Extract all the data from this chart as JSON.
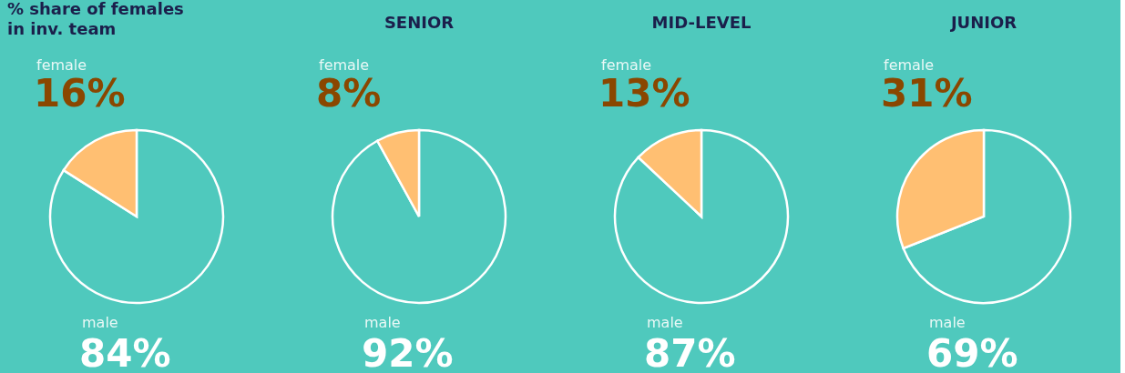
{
  "chart_data": [
    {
      "type": "pie",
      "title": "% share of females\nin inv. team",
      "categories": [
        "male",
        "female"
      ],
      "values": [
        84,
        16
      ],
      "colors": [
        "#4fc9bd",
        "#ffbf72"
      ],
      "value_labels": [
        "84%",
        "16%"
      ],
      "legend": false
    },
    {
      "type": "pie",
      "title": "SENIOR",
      "categories": [
        "male",
        "female"
      ],
      "values": [
        92,
        8
      ],
      "colors": [
        "#4fc9bd",
        "#ffbf72"
      ],
      "value_labels": [
        "92%",
        "8%"
      ],
      "legend": false
    },
    {
      "type": "pie",
      "title": "MID-LEVEL",
      "categories": [
        "male",
        "female"
      ],
      "values": [
        87,
        13
      ],
      "colors": [
        "#4fc9bd",
        "#ffbf72"
      ],
      "value_labels": [
        "87%",
        "13%"
      ],
      "legend": false
    },
    {
      "type": "pie",
      "title": "JUNIOR",
      "categories": [
        "male",
        "female"
      ],
      "values": [
        69,
        31
      ],
      "colors": [
        "#4fc9bd",
        "#ffbf72"
      ],
      "value_labels": [
        "69%",
        "31%"
      ],
      "legend": false
    }
  ]
}
